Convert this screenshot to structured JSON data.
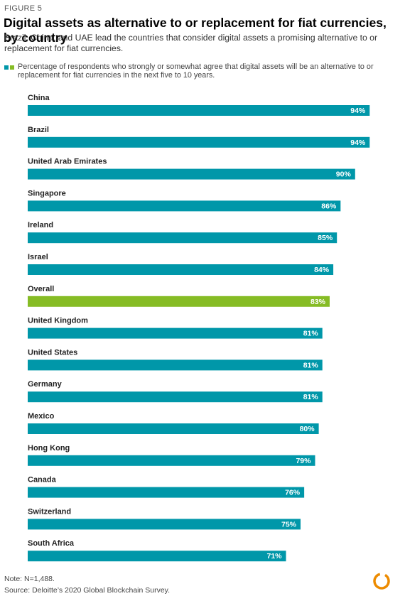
{
  "figure_label": "FIGURE 5",
  "note": "Note: N=1,488.",
  "source": "Source: Deloitte’s 2020 Global Blockchain Survey.",
  "colors": {
    "country_bar": "#0097a9",
    "overall_bar": "#86bc25",
    "logo": "#ed8b00"
  },
  "chart_data": {
    "type": "bar",
    "orientation": "horizontal",
    "title": "Digital assets as alternative to or replacement for fiat currencies, by country",
    "subtitle": "Brazil, China, and UAE lead the countries that consider digital assets a promising alternative to or replacement for fiat currencies.",
    "legend": "Percentage of respondents who strongly or somewhat agree that digital assets will be an alternative to or replacement for fiat currencies in the next five to 10 years.",
    "categories": [
      "China",
      "Brazil",
      "United Arab Emirates",
      "Singapore",
      "Ireland",
      "Israel",
      "Overall",
      "United Kingdom",
      "United States",
      "Germany",
      "Mexico",
      "Hong Kong",
      "Canada",
      "Switzerland",
      "South Africa"
    ],
    "values": [
      94,
      94,
      90,
      86,
      85,
      84,
      83,
      81,
      81,
      81,
      80,
      79,
      76,
      75,
      71
    ],
    "labels": [
      "94%",
      "94%",
      "90%",
      "86%",
      "85%",
      "84%",
      "83%",
      "81%",
      "81%",
      "81%",
      "80%",
      "79%",
      "76%",
      "75%",
      "71%"
    ],
    "highlight_category": "Overall",
    "xlim": [
      0,
      100
    ]
  }
}
